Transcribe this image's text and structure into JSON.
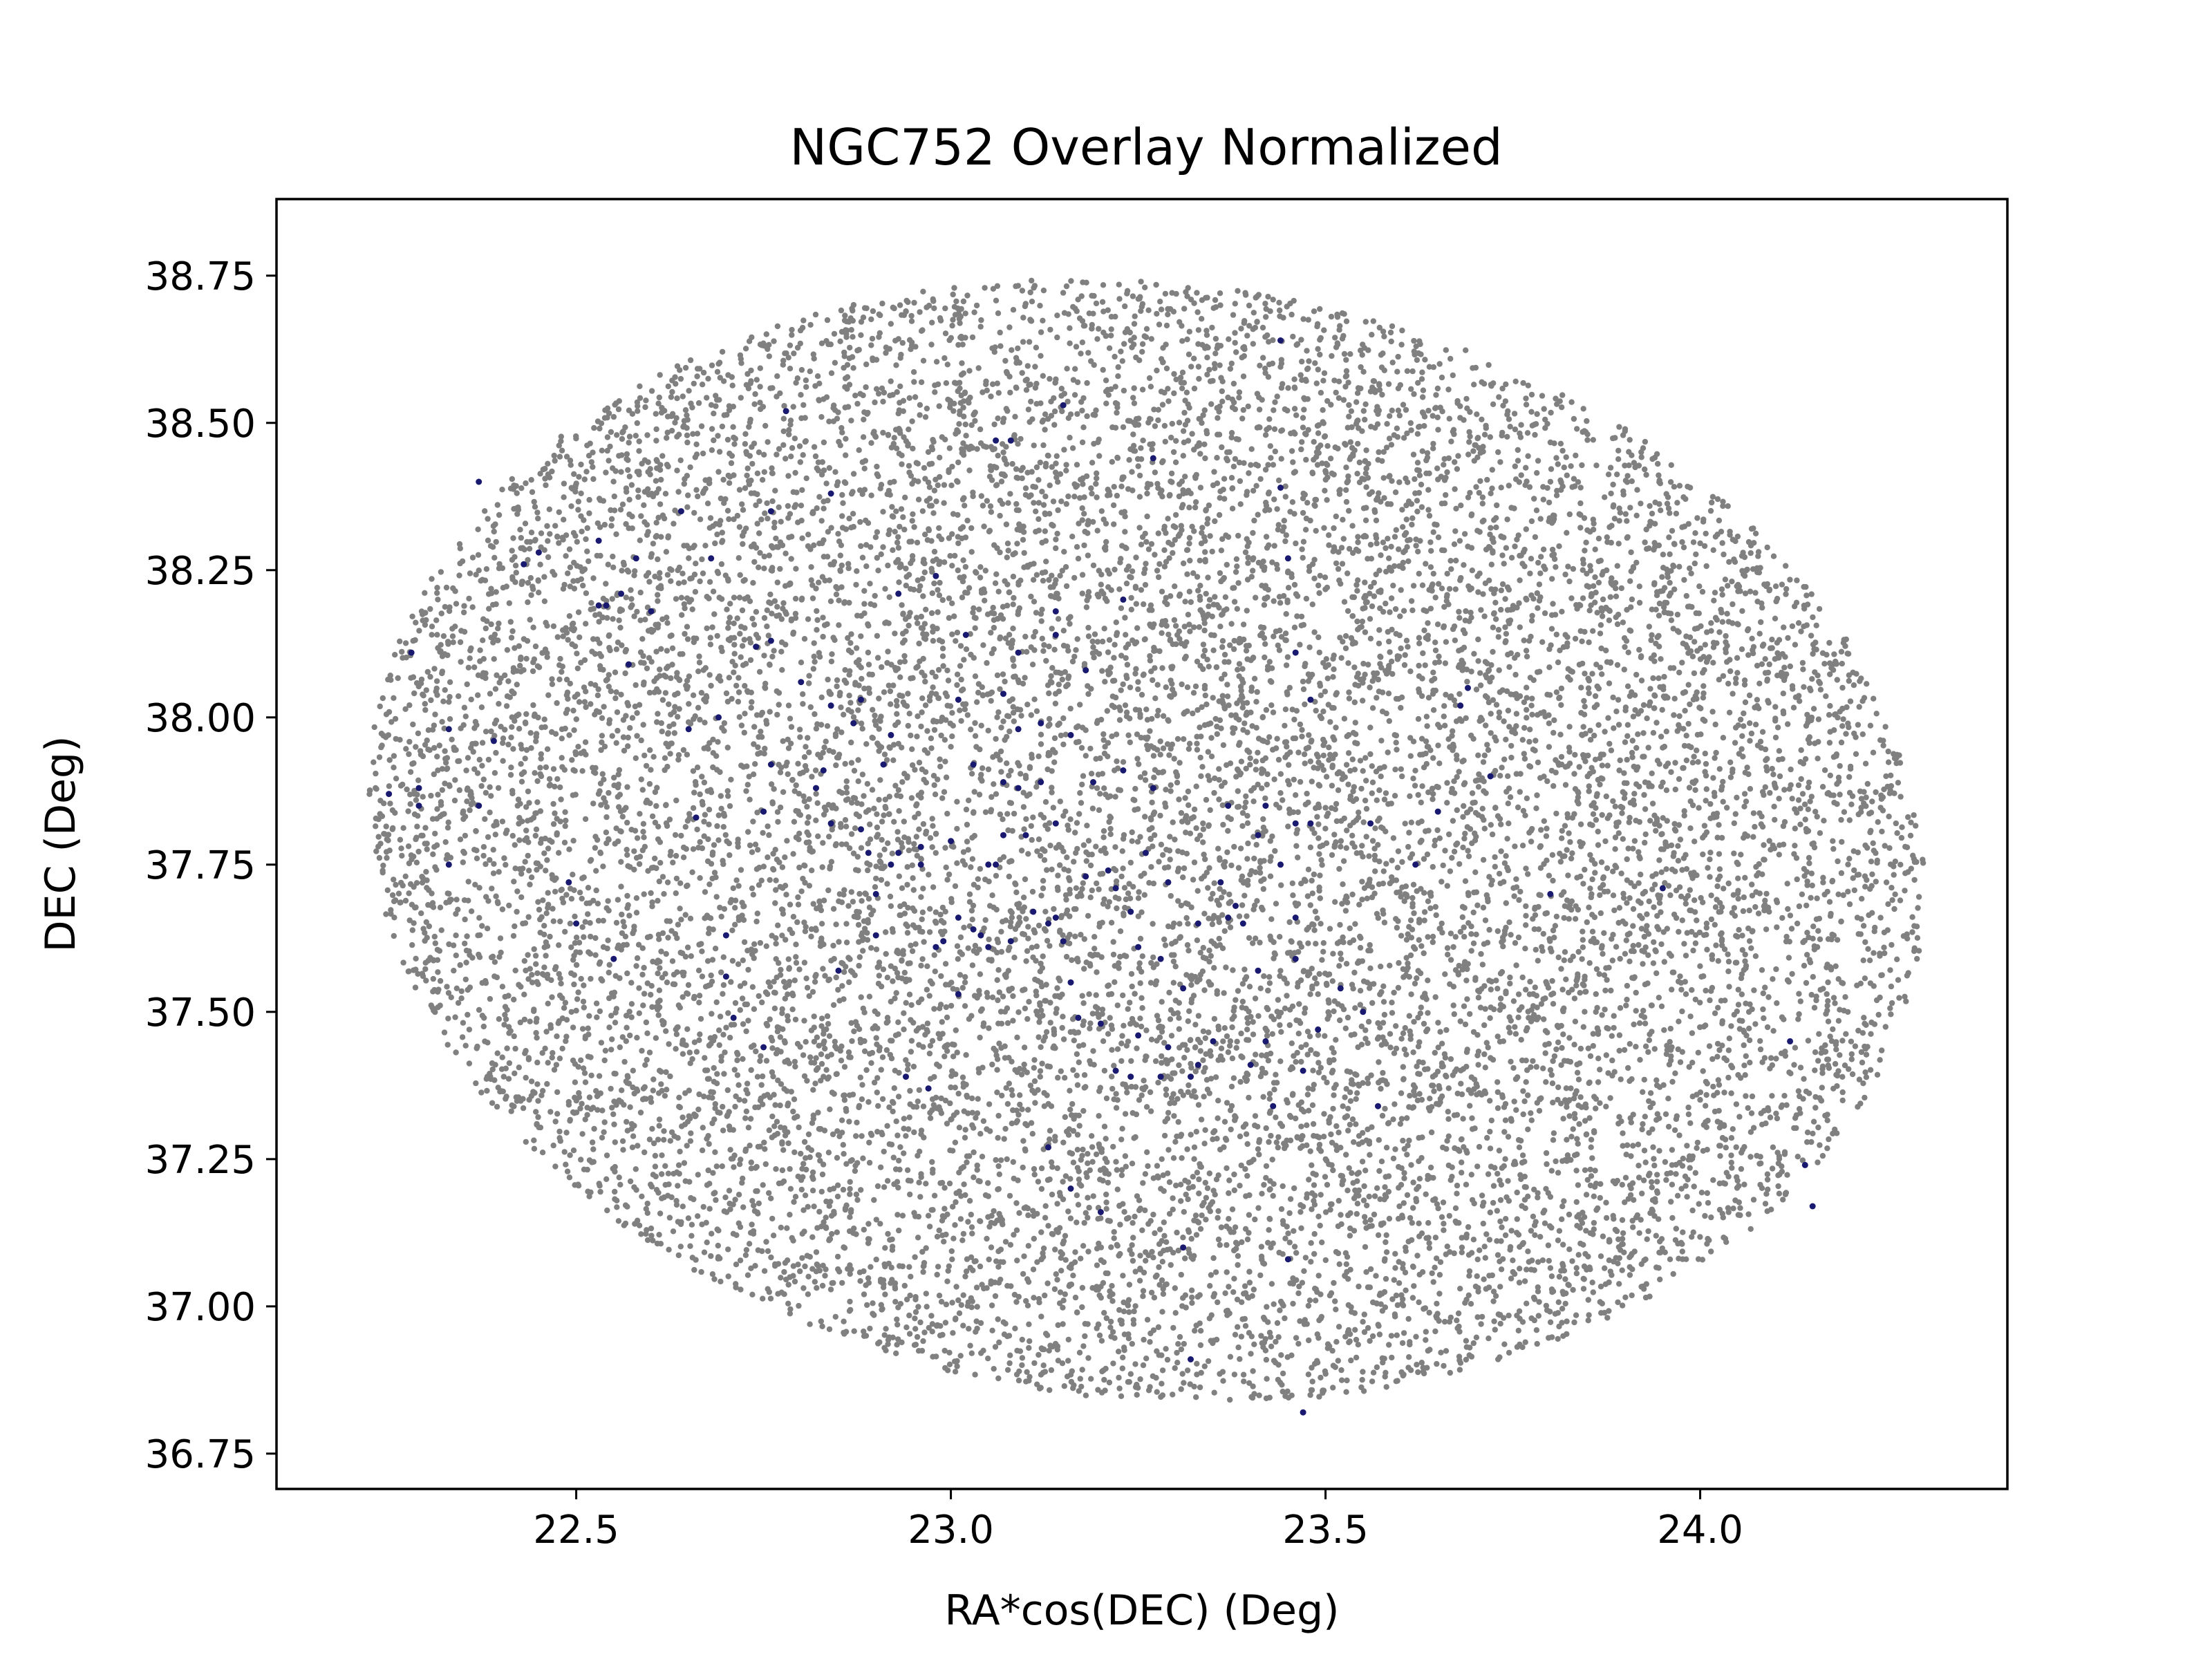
{
  "chart_data": {
    "type": "scatter",
    "title": "NGC752 Overlay Normalized",
    "xlabel": "RA*cos(DEC) (Deg)",
    "ylabel": "DEC (Deg)",
    "xlim": [
      22.1,
      24.41
    ],
    "ylim": [
      36.69,
      38.88
    ],
    "xticks": [
      "22.5",
      "23.0",
      "23.5",
      "24.0"
    ],
    "xtick_values": [
      22.5,
      23.0,
      23.5,
      24.0
    ],
    "yticks": [
      "36.75",
      "37.00",
      "37.25",
      "37.50",
      "37.75",
      "38.00",
      "38.25",
      "38.50",
      "38.75"
    ],
    "ytick_values": [
      36.75,
      37.0,
      37.25,
      37.5,
      37.75,
      38.0,
      38.25,
      38.5,
      38.75
    ],
    "grid": false,
    "legend": "none",
    "series": [
      {
        "role": "field",
        "color": "#808080",
        "distribution": "uniform ellipse, approx. 14000 points",
        "ellipse": {
          "center": [
            23.26,
            37.79
          ],
          "ra_extent": [
            22.2,
            24.31
          ],
          "dec_extent": [
            36.79,
            38.78
          ],
          "rotation_deg": -22
        }
      },
      {
        "role": "members",
        "color": "#191970",
        "points": [
          [
            22.25,
            37.87
          ],
          [
            22.28,
            38.11
          ],
          [
            22.29,
            37.88
          ],
          [
            22.29,
            37.85
          ],
          [
            22.33,
            37.98
          ],
          [
            22.33,
            37.75
          ],
          [
            22.37,
            38.4
          ],
          [
            22.37,
            37.85
          ],
          [
            22.39,
            37.96
          ],
          [
            22.43,
            38.26
          ],
          [
            22.45,
            38.28
          ],
          [
            22.49,
            37.72
          ],
          [
            22.5,
            37.65
          ],
          [
            22.53,
            38.3
          ],
          [
            22.53,
            38.19
          ],
          [
            22.54,
            38.19
          ],
          [
            22.55,
            37.59
          ],
          [
            22.56,
            38.21
          ],
          [
            22.57,
            38.09
          ],
          [
            22.58,
            38.27
          ],
          [
            22.6,
            38.18
          ],
          [
            22.64,
            38.35
          ],
          [
            22.65,
            37.98
          ],
          [
            22.66,
            37.83
          ],
          [
            22.68,
            38.27
          ],
          [
            22.69,
            38.0
          ],
          [
            22.7,
            37.63
          ],
          [
            22.7,
            37.56
          ],
          [
            22.71,
            37.49
          ],
          [
            22.74,
            38.12
          ],
          [
            22.75,
            37.84
          ],
          [
            22.75,
            37.44
          ],
          [
            22.76,
            38.35
          ],
          [
            22.76,
            38.13
          ],
          [
            22.76,
            37.92
          ],
          [
            22.78,
            38.52
          ],
          [
            22.8,
            38.06
          ],
          [
            22.82,
            37.88
          ],
          [
            22.83,
            37.91
          ],
          [
            22.84,
            38.38
          ],
          [
            22.84,
            38.02
          ],
          [
            22.84,
            37.82
          ],
          [
            22.85,
            37.57
          ],
          [
            22.87,
            37.99
          ],
          [
            22.88,
            38.03
          ],
          [
            22.88,
            37.81
          ],
          [
            22.89,
            37.77
          ],
          [
            22.9,
            37.7
          ],
          [
            22.9,
            37.63
          ],
          [
            22.91,
            37.92
          ],
          [
            22.92,
            37.97
          ],
          [
            22.92,
            37.75
          ],
          [
            22.93,
            38.21
          ],
          [
            22.93,
            37.77
          ],
          [
            22.94,
            37.39
          ],
          [
            22.96,
            37.75
          ],
          [
            22.96,
            37.78
          ],
          [
            22.97,
            37.37
          ],
          [
            22.98,
            38.24
          ],
          [
            22.98,
            37.61
          ],
          [
            22.99,
            37.62
          ],
          [
            23.0,
            37.79
          ],
          [
            23.01,
            38.03
          ],
          [
            23.01,
            37.66
          ],
          [
            23.01,
            37.53
          ],
          [
            23.02,
            38.14
          ],
          [
            23.03,
            37.92
          ],
          [
            23.03,
            37.64
          ],
          [
            23.04,
            37.63
          ],
          [
            23.05,
            37.75
          ],
          [
            23.05,
            37.61
          ],
          [
            23.06,
            37.75
          ],
          [
            23.06,
            38.47
          ],
          [
            23.07,
            38.04
          ],
          [
            23.07,
            37.89
          ],
          [
            23.07,
            37.8
          ],
          [
            23.08,
            38.47
          ],
          [
            23.08,
            37.62
          ],
          [
            23.09,
            37.98
          ],
          [
            23.09,
            37.88
          ],
          [
            23.09,
            38.11
          ],
          [
            23.1,
            37.8
          ],
          [
            23.11,
            37.67
          ],
          [
            23.12,
            37.99
          ],
          [
            23.12,
            37.89
          ],
          [
            23.13,
            37.65
          ],
          [
            23.13,
            37.27
          ],
          [
            23.14,
            38.18
          ],
          [
            23.14,
            38.14
          ],
          [
            23.14,
            37.82
          ],
          [
            23.14,
            37.66
          ],
          [
            23.15,
            38.53
          ],
          [
            23.15,
            37.62
          ],
          [
            23.16,
            37.97
          ],
          [
            23.16,
            37.55
          ],
          [
            23.16,
            37.2
          ],
          [
            23.17,
            37.49
          ],
          [
            23.18,
            38.08
          ],
          [
            23.18,
            37.73
          ],
          [
            23.19,
            37.89
          ],
          [
            23.2,
            37.48
          ],
          [
            23.2,
            37.16
          ],
          [
            23.21,
            37.74
          ],
          [
            23.22,
            37.71
          ],
          [
            23.22,
            37.4
          ],
          [
            23.23,
            38.2
          ],
          [
            23.23,
            37.91
          ],
          [
            23.24,
            37.67
          ],
          [
            23.24,
            37.39
          ],
          [
            23.25,
            37.61
          ],
          [
            23.25,
            37.46
          ],
          [
            23.26,
            37.77
          ],
          [
            23.27,
            38.44
          ],
          [
            23.27,
            37.88
          ],
          [
            23.28,
            37.59
          ],
          [
            23.28,
            37.39
          ],
          [
            23.29,
            37.44
          ],
          [
            23.29,
            37.72
          ],
          [
            23.31,
            37.54
          ],
          [
            23.31,
            37.1
          ],
          [
            23.32,
            37.39
          ],
          [
            23.32,
            36.91
          ],
          [
            23.33,
            37.65
          ],
          [
            23.33,
            37.41
          ],
          [
            23.35,
            37.45
          ],
          [
            23.36,
            37.72
          ],
          [
            23.37,
            37.85
          ],
          [
            23.37,
            37.66
          ],
          [
            23.38,
            37.68
          ],
          [
            23.39,
            37.65
          ],
          [
            23.4,
            37.41
          ],
          [
            23.41,
            37.8
          ],
          [
            23.41,
            37.57
          ],
          [
            23.42,
            37.85
          ],
          [
            23.42,
            37.45
          ],
          [
            23.43,
            37.34
          ],
          [
            23.44,
            38.39
          ],
          [
            23.44,
            37.75
          ],
          [
            23.44,
            38.64
          ],
          [
            23.45,
            38.27
          ],
          [
            23.45,
            37.08
          ],
          [
            23.46,
            38.11
          ],
          [
            23.46,
            37.82
          ],
          [
            23.46,
            37.66
          ],
          [
            23.46,
            37.59
          ],
          [
            23.47,
            37.4
          ],
          [
            23.47,
            36.82
          ],
          [
            23.48,
            37.82
          ],
          [
            23.48,
            38.03
          ],
          [
            23.49,
            37.47
          ],
          [
            23.52,
            37.54
          ],
          [
            23.55,
            37.5
          ],
          [
            23.56,
            37.82
          ],
          [
            23.57,
            37.34
          ],
          [
            23.62,
            37.75
          ],
          [
            23.65,
            37.84
          ],
          [
            23.68,
            38.02
          ],
          [
            23.69,
            38.05
          ],
          [
            23.72,
            37.9
          ],
          [
            23.8,
            37.7
          ],
          [
            23.95,
            37.71
          ],
          [
            24.12,
            37.45
          ],
          [
            24.14,
            37.24
          ],
          [
            24.15,
            37.17
          ]
        ]
      }
    ]
  }
}
